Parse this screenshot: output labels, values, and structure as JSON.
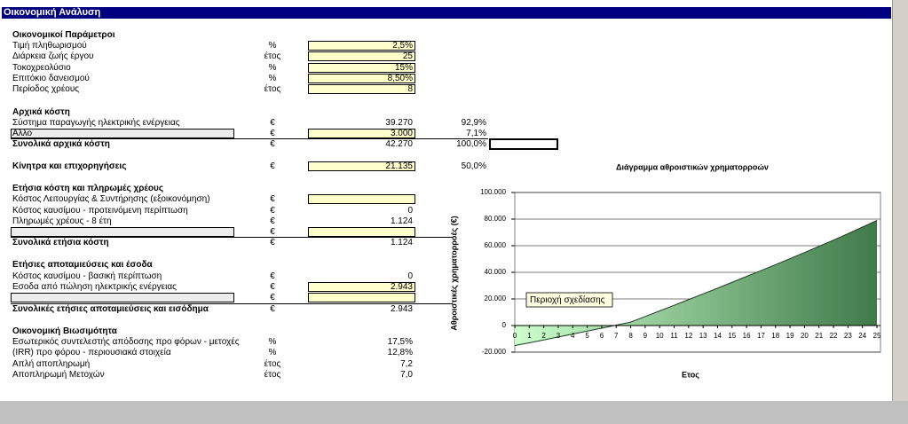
{
  "header": "Οικονομική Ανάλυση",
  "sections": [
    {
      "title": "Οικονομικοί Παράμετροι",
      "rows": [
        {
          "label": "Τιμή πληθωρισμού",
          "unit": "%",
          "value": "2,5%"
        },
        {
          "label": "Διάρκεια ζωής έργου",
          "unit": "έτος",
          "value": "25"
        },
        {
          "label": "Τοκοχρεολύσιο",
          "unit": "%",
          "value": "15%"
        },
        {
          "label": "Επιτόκιο δανεισμού",
          "unit": "%",
          "value": "8,50%"
        },
        {
          "label": "Περίοδος χρέους",
          "unit": "έτος",
          "value": "8"
        }
      ]
    },
    {
      "title": "Αρχικά κόστη",
      "rows": [
        {
          "label": "Σύστημα παραγωγής ηλεκτρικής ενέργειας",
          "unit": "€",
          "value": "39.270",
          "share": "92,9%"
        },
        {
          "label": "Αλλο",
          "unit": "€",
          "value": "3.000",
          "share": "7,1%"
        },
        {
          "label": "Συνολικά αρχικά κόστη",
          "unit": "€",
          "value": "42.270",
          "share": "100,0%"
        }
      ]
    },
    {
      "title": "Κίνητρα και επιχορηγήσεις",
      "unit": "€",
      "value": "21.135",
      "share": "50,0%",
      "rows": []
    },
    {
      "title": "Ετήσια κόστη και πληρωμές χρέους",
      "rows": [
        {
          "label": "Κόστος Λειτουργίας & Συντήρησης (εξοικονόμηση)",
          "unit": "€"
        },
        {
          "label": "Κόστος καυσίμου - προτεινόμενη περίπτωση",
          "unit": "€",
          "value": "0"
        },
        {
          "label": "Πληρωμές χρέους - 8 έτη",
          "unit": "€",
          "value": "1.124"
        },
        {
          "unit": "€"
        },
        {
          "label": "Συνολικά ετήσια κόστη",
          "unit": "€",
          "value": "1.124"
        }
      ]
    },
    {
      "title": "Ετήσιες αποταμιεύσεις και έσοδα",
      "rows": [
        {
          "label": "Κόστος καυσίμου - βασική περίπτωση",
          "unit": "€",
          "value": "0"
        },
        {
          "label": "Εσοδα από πώληση ηλεκτρικής ενέργειας",
          "unit": "€",
          "value": "2.943"
        },
        {
          "unit": "€"
        },
        {
          "label": "Συνολικές ετήσιες αποταμιεύσεις και εισόδημα",
          "unit": "€",
          "value": "2.943"
        }
      ]
    },
    {
      "title": "Οικονομική Βιωσιμότητα",
      "rows": [
        {
          "label": "Εσωτερικός συντελεστής απόδοσης προ φόρων - μετοχές",
          "unit": "%",
          "value": "17,5%"
        },
        {
          "label": "(IRR) προ φόρου - περιουσιακά στοιχεία",
          "unit": "%",
          "value": "12,8%"
        },
        {
          "label": "Απλή αποπληρωμή",
          "unit": "έτος",
          "value": "7,2"
        },
        {
          "label": "Αποπληρωμή Μετοχών",
          "unit": "έτος",
          "value": "7,0"
        }
      ]
    }
  ],
  "chart_data": {
    "type": "area",
    "title": "Διάγραμμα αθροιστικών χρηματορροών",
    "x_label": "Ετος",
    "y_label": "Αθροιστικές χρηματορροές (€)",
    "annotation": "Περιοχή σχεδίασης",
    "categories": [
      "0",
      "1",
      "2",
      "3",
      "4",
      "5",
      "6",
      "7",
      "8",
      "9",
      "10",
      "11",
      "12",
      "13",
      "14",
      "15",
      "16",
      "17",
      "18",
      "19",
      "20",
      "21",
      "22",
      "23",
      "24",
      "25"
    ],
    "values": [
      -15000,
      -13000,
      -10800,
      -8600,
      -6400,
      -4200,
      -2000,
      300,
      2600,
      6800,
      11000,
      15200,
      19500,
      23800,
      28100,
      32500,
      36900,
      41300,
      45800,
      50300,
      54900,
      59500,
      64200,
      69000,
      74000,
      79000
    ],
    "ylim": [
      -20000,
      100000
    ],
    "yticks": [
      {
        "value": -20000,
        "label": "-20.000"
      },
      0,
      {
        "value": 20000,
        "label": "20.000"
      },
      {
        "value": 40000,
        "label": "40.000"
      },
      {
        "value": 60000,
        "label": "60.000"
      },
      {
        "value": 80000,
        "label": "80.000"
      },
      {
        "value": 100000,
        "label": "100.000"
      }
    ],
    "grid": true
  }
}
